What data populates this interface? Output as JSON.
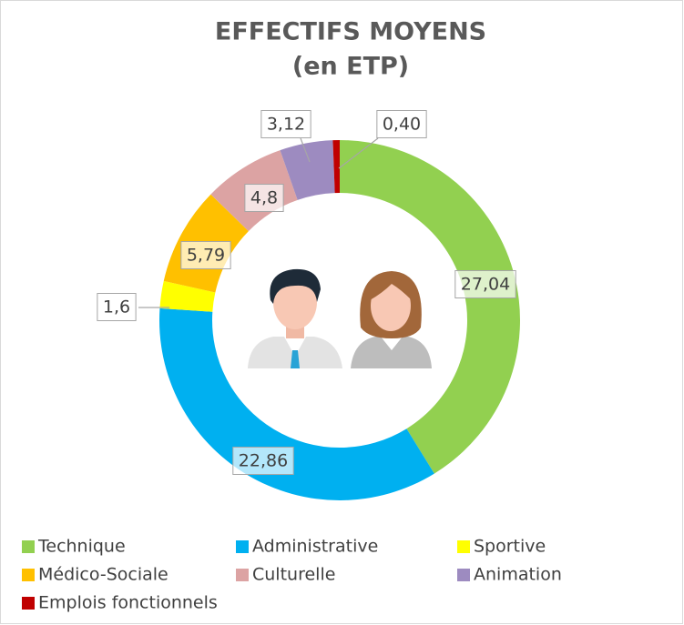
{
  "chart_data": {
    "type": "donut",
    "title": "EFFECTIFS MOYENS",
    "subtitle": "(en ETP)",
    "categories": [
      "Technique",
      "Administrative",
      "Sportive",
      "Médico-Sociale",
      "Culturelle",
      "Animation",
      "Emplois fonctionnels"
    ],
    "values": [
      27.04,
      22.86,
      1.6,
      5.79,
      4.8,
      3.12,
      0.4
    ],
    "value_labels": [
      "27,04",
      "22,86",
      "1,6",
      "5,79",
      "4,8",
      "3,12",
      "0,40"
    ],
    "colors": [
      "#92d050",
      "#00b0f0",
      "#ffff00",
      "#ffc000",
      "#dca3a3",
      "#9d8bc0",
      "#c00000"
    ],
    "legend": "bottom"
  }
}
